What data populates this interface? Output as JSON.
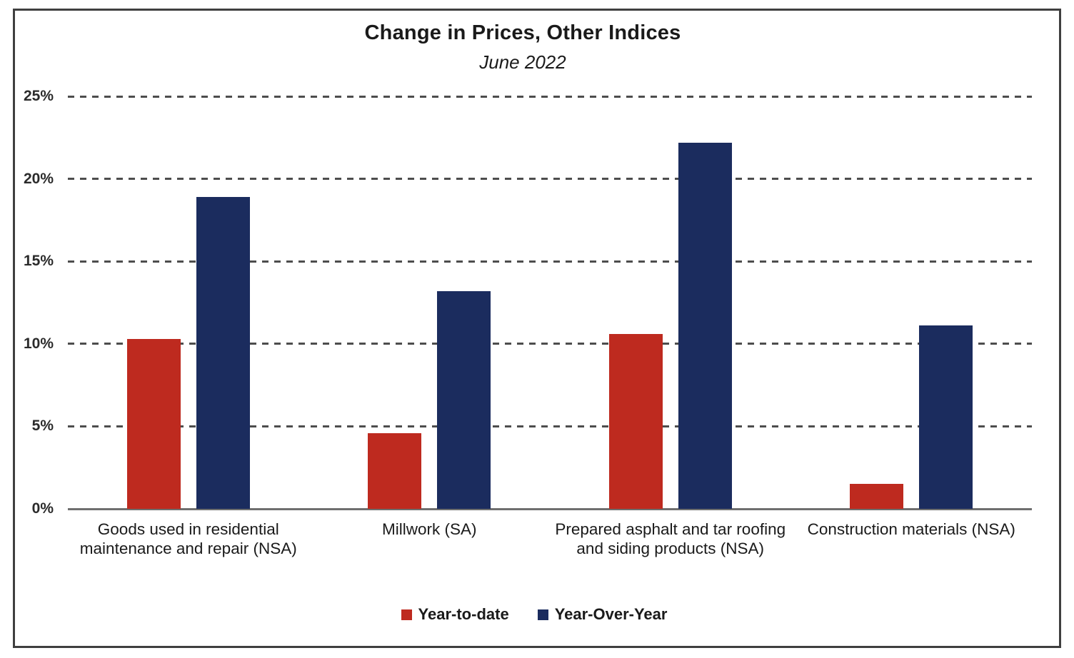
{
  "header": {
    "title": "Change in Prices, Other Indices",
    "subtitle": "June 2022"
  },
  "colors": {
    "year_to_date": "#be2a1f",
    "year_over_year": "#1b2c5e",
    "gridline": "#4d4d4d",
    "axis_line": "#6f6f6f",
    "frame_border": "#3f3f3f",
    "text": "#1a1a1a"
  },
  "chart_data": {
    "type": "bar",
    "title": "Change in Prices, Other Indices",
    "subtitle": "June 2022",
    "categories": [
      "Goods used in residential maintenance and repair (NSA)",
      "Millwork (SA)",
      "Prepared asphalt and tar roofing and siding products (NSA)",
      "Construction materials (NSA)"
    ],
    "series": [
      {
        "name": "Year-to-date",
        "color": "#be2a1f",
        "values": [
          10.3,
          4.6,
          10.6,
          1.5
        ]
      },
      {
        "name": "Year-Over-Year",
        "color": "#1b2c5e",
        "values": [
          18.9,
          13.2,
          22.2,
          11.1
        ]
      }
    ],
    "unit": "%",
    "xlabel": "",
    "ylabel": "",
    "ylim": [
      0,
      25
    ],
    "ytick_step": 5,
    "ytick_labels": [
      "0%",
      "5%",
      "10%",
      "15%",
      "20%",
      "25%"
    ],
    "grid": "horizontal-dashed",
    "legend_position": "bottom"
  }
}
